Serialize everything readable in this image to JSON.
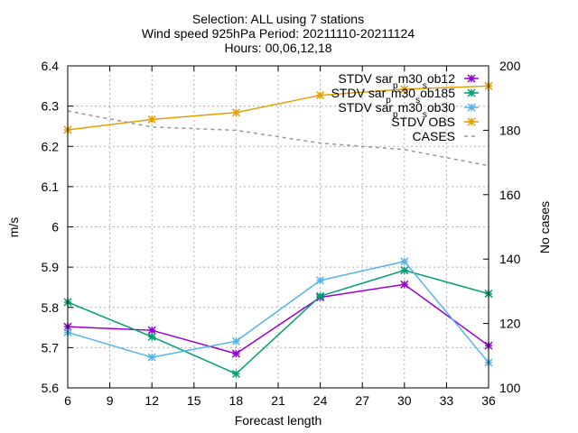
{
  "chart_data": {
    "type": "line",
    "title": [
      "Selection: ALL using     7 stations",
      "Wind speed 925hPa   Period: 20211110-20211124",
      "Hours: 00,06,12,18"
    ],
    "xlabel": "Forecast length",
    "ylabel": "m/s",
    "y2label": "No cases",
    "xlim": [
      6,
      36
    ],
    "ylim": [
      5.6,
      6.4
    ],
    "y2lim": [
      100,
      200
    ],
    "x_ticks": [
      "6",
      "9",
      "12",
      "15",
      "18",
      "21",
      "24",
      "27",
      "30",
      "33",
      "36"
    ],
    "y_ticks": [
      "5.6",
      "5.7",
      "5.8",
      "5.9",
      "6",
      "6.1",
      "6.2",
      "6.3",
      "6.4"
    ],
    "y2_ticks": [
      "100",
      "120",
      "140",
      "160",
      "180",
      "200"
    ],
    "grid": true,
    "legend_position": "top-right",
    "x": [
      6,
      12,
      18,
      24,
      30,
      36
    ],
    "series": [
      {
        "name_parts": [
          "STDV sar",
          "p",
          "m30",
          "s",
          "ob12"
        ],
        "color": "#9400d3",
        "axis": "y",
        "dash": false,
        "marker": "x-star",
        "values": [
          5.752,
          5.743,
          5.685,
          5.825,
          5.857,
          5.705
        ]
      },
      {
        "name_parts": [
          "STDV sar",
          "p",
          "m30",
          "s",
          "ob185"
        ],
        "color": "#009e73",
        "axis": "y",
        "dash": false,
        "marker": "x-star",
        "values": [
          5.813,
          5.727,
          5.635,
          5.828,
          5.892,
          5.834
        ]
      },
      {
        "name_parts": [
          "STDV sar",
          "p",
          "m30",
          "s",
          "ob30"
        ],
        "color": "#56b4e9",
        "axis": "y",
        "dash": false,
        "marker": "x-star",
        "values": [
          5.738,
          5.676,
          5.716,
          5.867,
          5.914,
          5.663
        ]
      },
      {
        "name": "STDV OBS",
        "color": "#e69f00",
        "axis": "y",
        "dash": false,
        "marker": "x-star",
        "values": [
          6.241,
          6.267,
          6.284,
          6.327,
          6.342,
          6.35
        ]
      },
      {
        "name": "CASES",
        "color": "#999999",
        "axis": "y2",
        "dash": true,
        "marker": "none",
        "values": [
          186,
          181,
          180,
          176,
          174,
          169
        ]
      }
    ]
  }
}
